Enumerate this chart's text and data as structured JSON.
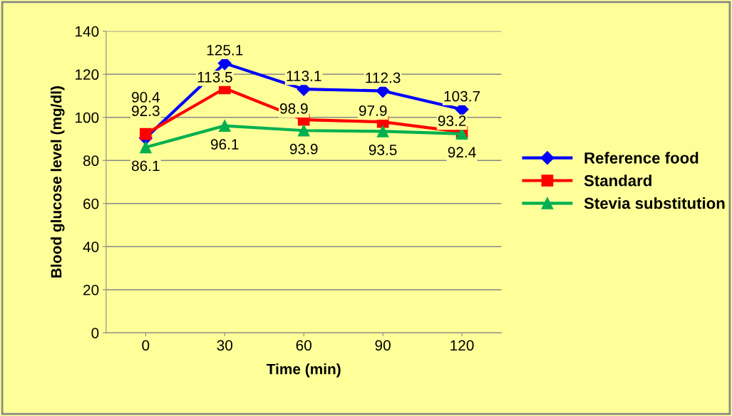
{
  "chart_data": {
    "type": "line",
    "xlabel": "Time (min)",
    "ylabel": "Blood glucose level (mg/dl)",
    "categories": [
      "0",
      "30",
      "60",
      "90",
      "120"
    ],
    "series": [
      {
        "name": "Reference food",
        "color": "#0000ff",
        "marker": "diamond",
        "values": [
          90.4,
          125.1,
          113.1,
          112.3,
          103.7
        ]
      },
      {
        "name": "Standard",
        "color": "#ff0000",
        "marker": "square",
        "values": [
          92.3,
          113.5,
          98.9,
          97.9,
          93.2
        ]
      },
      {
        "name": "Stevia substitution",
        "color": "#00b050",
        "marker": "triangle",
        "values": [
          86.1,
          96.1,
          93.9,
          93.5,
          92.4
        ]
      }
    ],
    "ylim": [
      0,
      140
    ],
    "yticks": [
      0,
      20,
      40,
      60,
      80,
      100,
      120,
      140
    ],
    "grid": "y",
    "legend": "right",
    "data_labels": true,
    "line_style": "solid"
  }
}
